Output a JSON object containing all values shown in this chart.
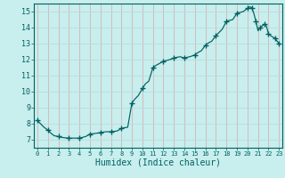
{
  "xlabel": "Humidex (Indice chaleur)",
  "bg_color": "#c8eeee",
  "line_color": "#006060",
  "marker_color": "#006060",
  "grid_color_v": "#d8a8a8",
  "grid_color_h": "#b8d8d8",
  "xlim": [
    -0.3,
    23.3
  ],
  "ylim": [
    6.5,
    15.5
  ],
  "yticks": [
    7,
    8,
    9,
    10,
    11,
    12,
    13,
    14,
    15
  ],
  "xticks": [
    0,
    1,
    2,
    3,
    4,
    5,
    6,
    7,
    8,
    9,
    10,
    11,
    12,
    13,
    14,
    15,
    16,
    17,
    18,
    19,
    20,
    21,
    22,
    23
  ],
  "x": [
    0,
    0.3,
    0.6,
    1,
    1.3,
    1.6,
    2,
    2.3,
    2.6,
    3,
    3.3,
    3.6,
    4,
    4.3,
    4.6,
    5,
    5.3,
    5.6,
    6,
    6.3,
    6.6,
    7,
    7.3,
    7.6,
    8,
    8.3,
    8.6,
    9,
    9.3,
    9.6,
    10,
    10.3,
    10.6,
    11,
    11.3,
    11.6,
    12,
    12.3,
    12.6,
    13,
    13.3,
    13.6,
    14,
    14.3,
    14.6,
    15,
    15.3,
    15.6,
    16,
    16.3,
    16.6,
    17,
    17.3,
    17.6,
    18,
    18.3,
    18.6,
    19,
    19.3,
    19.6,
    20,
    20.2,
    20.4,
    20.6,
    20.8,
    21,
    21.2,
    21.4,
    21.6,
    21.8,
    22,
    22.3,
    22.6,
    23
  ],
  "y": [
    8.2,
    8.0,
    7.8,
    7.6,
    7.4,
    7.25,
    7.2,
    7.15,
    7.12,
    7.1,
    7.1,
    7.1,
    7.1,
    7.15,
    7.2,
    7.35,
    7.38,
    7.4,
    7.45,
    7.48,
    7.5,
    7.5,
    7.52,
    7.55,
    7.7,
    7.75,
    7.78,
    9.3,
    9.55,
    9.75,
    10.2,
    10.5,
    10.65,
    11.5,
    11.65,
    11.75,
    11.9,
    11.95,
    12.0,
    12.1,
    12.15,
    12.18,
    12.1,
    12.15,
    12.2,
    12.3,
    12.45,
    12.55,
    12.9,
    13.05,
    13.15,
    13.5,
    13.7,
    13.9,
    14.4,
    14.45,
    14.5,
    14.9,
    14.95,
    15.0,
    15.2,
    15.3,
    15.25,
    14.9,
    14.4,
    13.8,
    14.0,
    14.1,
    14.2,
    14.1,
    13.6,
    13.45,
    13.35,
    13.0
  ],
  "marker_x": [
    0,
    1,
    2,
    3,
    4,
    5,
    6,
    7,
    8,
    9,
    10,
    11,
    12,
    13,
    14,
    15,
    16,
    17,
    18,
    19,
    20,
    20.4,
    20.8,
    21.2,
    21.6,
    22,
    22.6,
    23
  ],
  "marker_y": [
    8.2,
    7.6,
    7.2,
    7.1,
    7.1,
    7.35,
    7.45,
    7.5,
    7.7,
    9.3,
    10.2,
    11.5,
    11.9,
    12.1,
    12.1,
    12.3,
    12.9,
    13.5,
    14.4,
    14.9,
    15.2,
    15.25,
    14.4,
    14.0,
    14.2,
    13.6,
    13.35,
    13.0
  ]
}
